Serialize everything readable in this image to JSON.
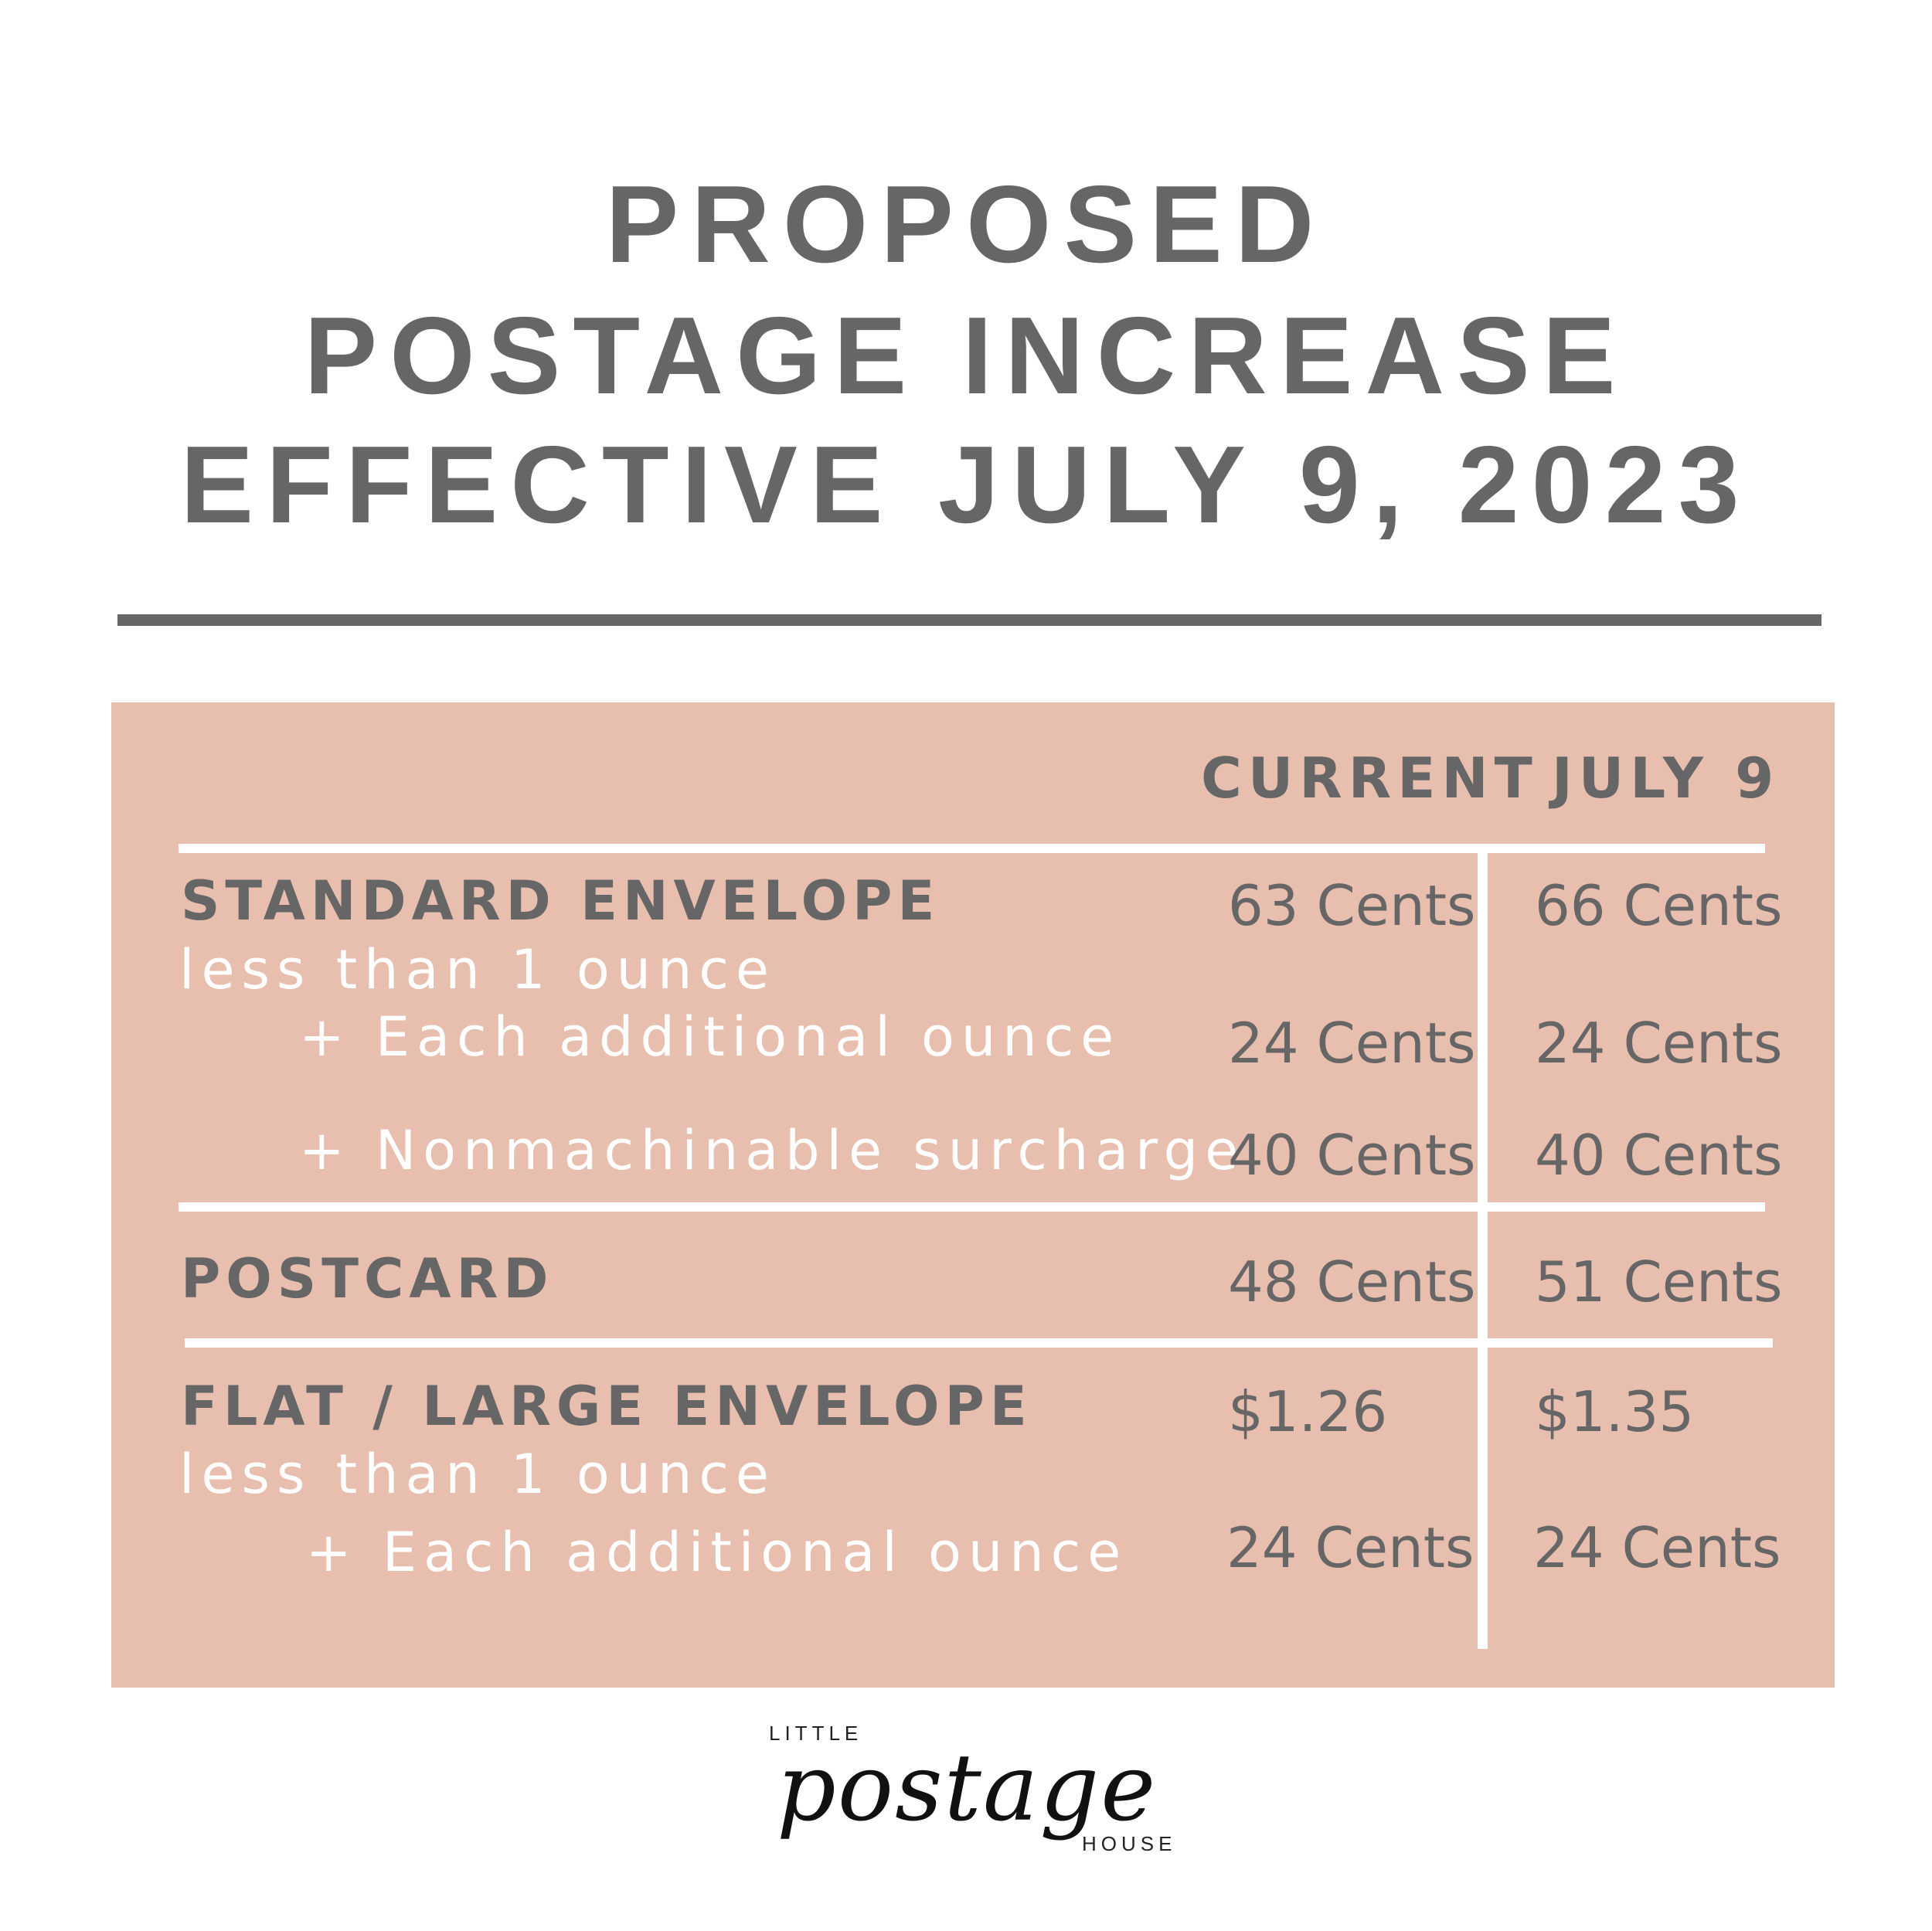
{
  "title": {
    "line1": "PROPOSED",
    "line2": "POSTAGE INCREASE",
    "line3": "EFFECTIVE JULY 9, 2023"
  },
  "table": {
    "headers": {
      "current": "CURRENT",
      "july9": "JULY 9"
    },
    "standard_envelope": {
      "label": "STANDARD ENVELOPE",
      "sublabel": "less than 1 ounce",
      "current": "63 Cents",
      "july9": "66 Cents",
      "additional_label": "+ Each additional ounce",
      "additional_current": "24 Cents",
      "additional_july9": "24 Cents",
      "nonmachinable_label": "+ Nonmachinable surcharge",
      "nonmachinable_current": "40 Cents",
      "nonmachinable_july9": "40 Cents"
    },
    "postcard": {
      "label": "POSTCARD",
      "current": "48 Cents",
      "july9": "51 Cents"
    },
    "flat_large_envelope": {
      "label": "FLAT / LARGE ENVELOPE",
      "sublabel": "less than 1 ounce",
      "current": "$1.26",
      "july9": "$1.35",
      "additional_label": "+ Each additional ounce",
      "additional_current": "24 Cents",
      "additional_july9": "24 Cents"
    }
  },
  "logo": {
    "top": "LITTLE",
    "script": "postage",
    "bottom": "HOUSE"
  },
  "colors": {
    "text_gray": "#666667",
    "panel_pink": "#e8beae",
    "white": "#ffffff"
  }
}
